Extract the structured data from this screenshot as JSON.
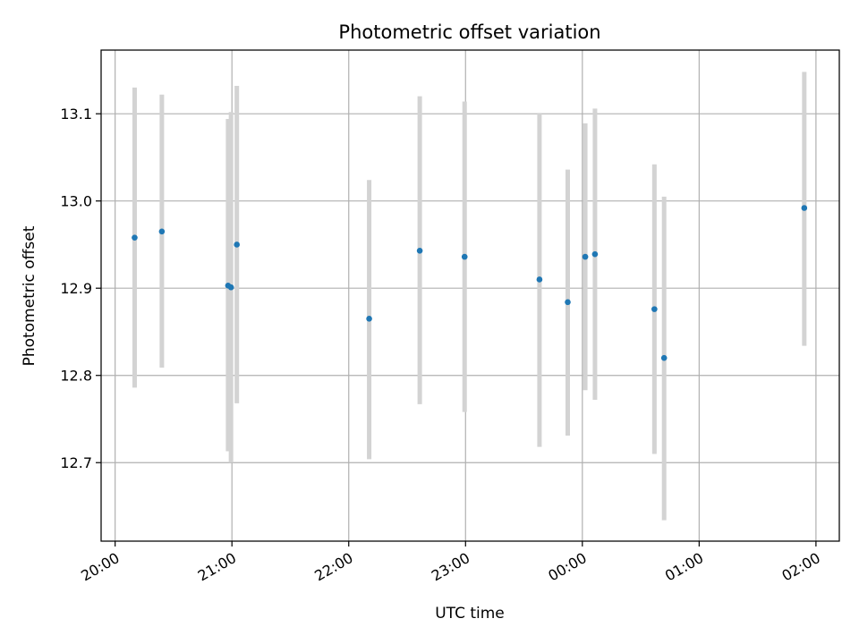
{
  "chart_data": {
    "type": "scatter",
    "title": "Photometric offset variation",
    "xlabel": "UTC time",
    "ylabel": "Photometric offset",
    "grid": true,
    "x_unit": "hours since 20:00 UTC",
    "xlim": [
      -0.12,
      6.2
    ],
    "ylim": [
      12.61,
      13.173
    ],
    "x_ticks": [
      0,
      1,
      2,
      3,
      4,
      5,
      6
    ],
    "x_tick_labels": [
      "20:00",
      "21:00",
      "22:00",
      "23:00",
      "00:00",
      "01:00",
      "02:00"
    ],
    "y_ticks": [
      12.7,
      12.8,
      12.9,
      13.0,
      13.1
    ],
    "y_tick_labels": [
      "12.7",
      "12.8",
      "12.9",
      "13.0",
      "13.1"
    ],
    "marker_color": "#1f77b4",
    "errorbar_color": "#d3d3d3",
    "series": [
      {
        "points": [
          {
            "x": 0.167,
            "y": 12.958,
            "ylo": 12.786,
            "yhi": 13.13
          },
          {
            "x": 0.4,
            "y": 12.965,
            "ylo": 12.809,
            "yhi": 13.122
          },
          {
            "x": 0.967,
            "y": 12.903,
            "ylo": 12.713,
            "yhi": 13.094
          },
          {
            "x": 0.992,
            "y": 12.901,
            "ylo": 12.7,
            "yhi": 13.102
          },
          {
            "x": 1.042,
            "y": 12.95,
            "ylo": 12.768,
            "yhi": 13.132
          },
          {
            "x": 2.175,
            "y": 12.865,
            "ylo": 12.704,
            "yhi": 13.024
          },
          {
            "x": 2.608,
            "y": 12.943,
            "ylo": 12.767,
            "yhi": 13.12
          },
          {
            "x": 2.992,
            "y": 12.936,
            "ylo": 12.758,
            "yhi": 13.114
          },
          {
            "x": 3.633,
            "y": 12.91,
            "ylo": 12.718,
            "yhi": 13.101
          },
          {
            "x": 3.875,
            "y": 12.884,
            "ylo": 12.731,
            "yhi": 13.036
          },
          {
            "x": 4.025,
            "y": 12.936,
            "ylo": 12.783,
            "yhi": 13.089
          },
          {
            "x": 4.108,
            "y": 12.939,
            "ylo": 12.772,
            "yhi": 13.106
          },
          {
            "x": 4.617,
            "y": 12.876,
            "ylo": 12.71,
            "yhi": 13.042
          },
          {
            "x": 4.7,
            "y": 12.82,
            "ylo": 12.634,
            "yhi": 13.005
          },
          {
            "x": 5.9,
            "y": 12.992,
            "ylo": 12.834,
            "yhi": 13.148
          }
        ]
      }
    ]
  }
}
